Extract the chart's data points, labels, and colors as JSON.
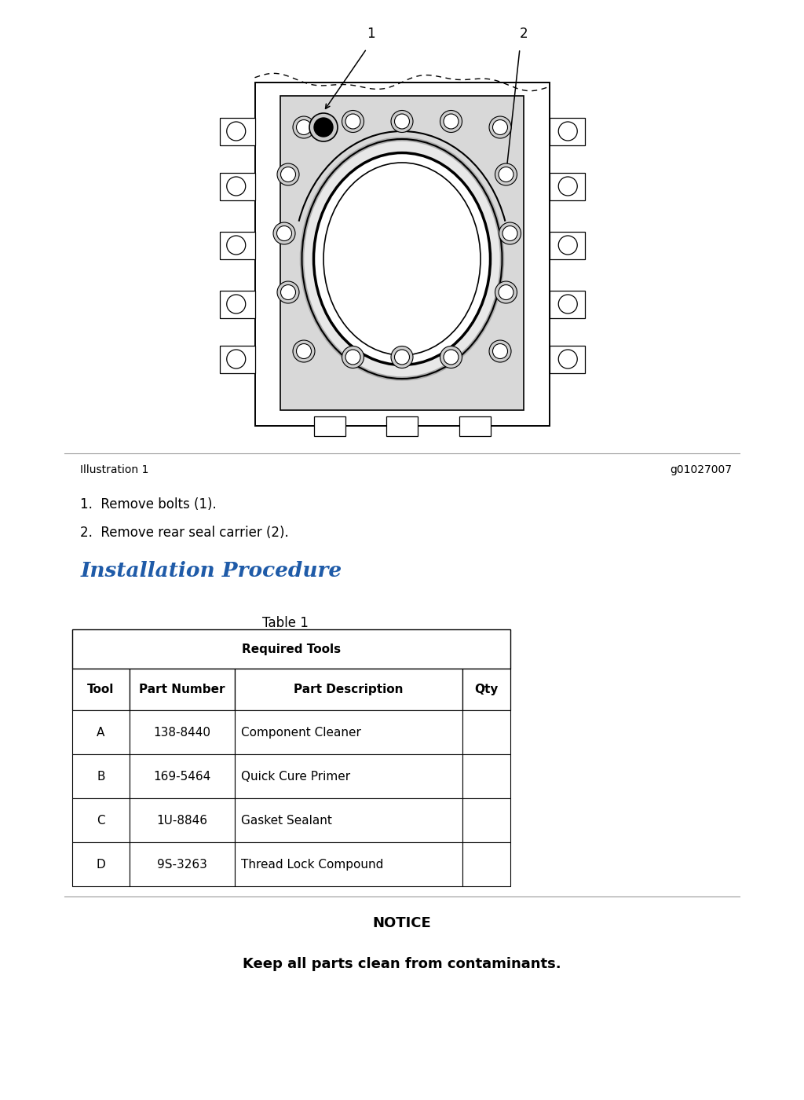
{
  "background_color": "#ffffff",
  "illustration_label": "Illustration 1",
  "illustration_ref": "g01027007",
  "steps": [
    "1.  Remove bolts (1).",
    "2.  Remove rear seal carrier (2)."
  ],
  "section_title": "Installation Procedure",
  "section_title_color": "#1f5ba8",
  "table_title": "Table 1",
  "table_header_merged": "Required Tools",
  "table_columns": [
    "Tool",
    "Part Number",
    "Part Description",
    "Qty"
  ],
  "table_rows": [
    [
      "A",
      "138-8440",
      "Component Cleaner",
      ""
    ],
    [
      "B",
      "169-5464",
      "Quick Cure Primer",
      ""
    ],
    [
      "C",
      "1U-8846",
      "Gasket Sealant",
      ""
    ],
    [
      "D",
      "9S-3263",
      "Thread Lock Compound",
      ""
    ]
  ],
  "notice_title": "NOTICE",
  "notice_body": "Keep all parts clean from contaminants.",
  "font_size_body": 12,
  "font_size_title": 19,
  "font_size_notice_title": 13,
  "font_size_notice_body": 13,
  "font_size_illustration": 10,
  "font_size_table": 11,
  "font_size_step": 12
}
